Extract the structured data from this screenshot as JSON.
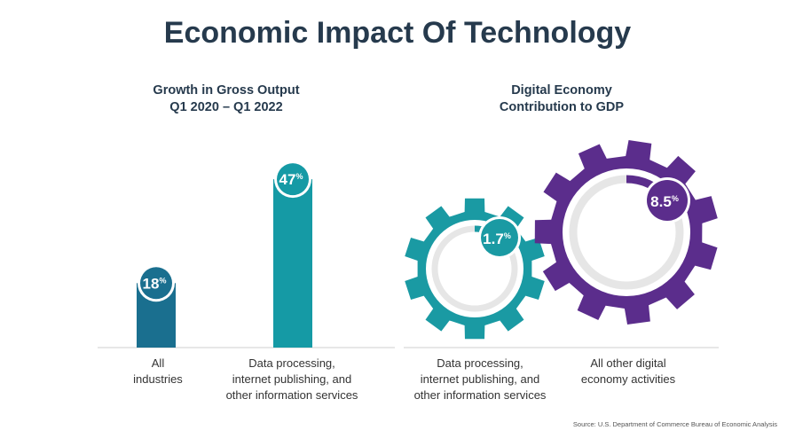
{
  "title": "Economic Impact Of Technology",
  "source": "Source:  U.S. Department of Commerce Bureau of Economic Analysis",
  "colors": {
    "title": "#263a4d",
    "bar_all": "#1a6f8f",
    "bar_data": "#159aa5",
    "gear_teal": "#1a9aa3",
    "gear_purple": "#5b2d8c",
    "ring_track": "#e6e6e6"
  },
  "chart_data": [
    {
      "type": "bar",
      "title": "Growth in Gross Output",
      "subtitle": "Q1 2020 – Q1 2022",
      "categories": [
        "All industries",
        "Data processing, internet publishing, and other information services"
      ],
      "category_lines": [
        [
          "All",
          "industries"
        ],
        [
          "Data processing,",
          "internet publishing, and",
          "other information services"
        ]
      ],
      "values": [
        18,
        47
      ],
      "value_labels": [
        "18",
        "47"
      ],
      "unit": "%",
      "ylim": [
        0,
        50
      ]
    },
    {
      "type": "pie",
      "title": "Digital Economy",
      "subtitle": "Contribution to GDP",
      "categories": [
        "Data processing, internet publishing, and other information services",
        "All other digital economy activities"
      ],
      "category_lines": [
        [
          "Data processing,",
          "internet publishing, and",
          "other information services"
        ],
        [
          "All other digital",
          "economy activities"
        ]
      ],
      "values": [
        1.7,
        8.5
      ],
      "value_labels": [
        "1.7",
        "8.5"
      ],
      "unit": "%"
    }
  ]
}
